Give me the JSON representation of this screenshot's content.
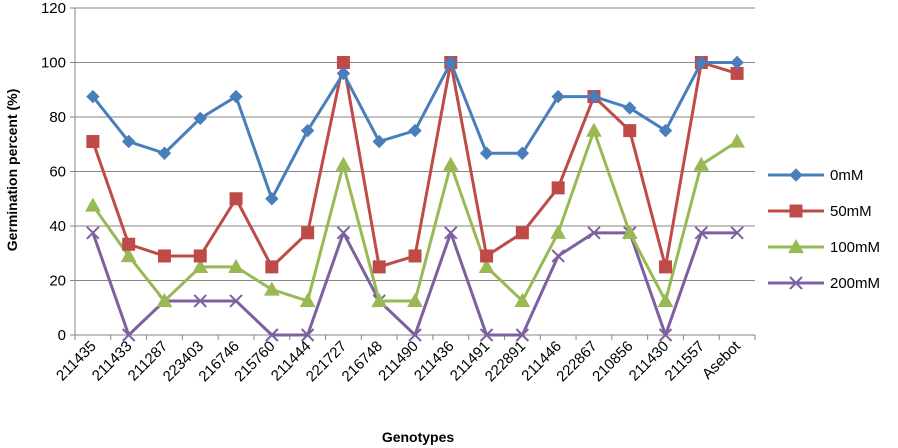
{
  "chart_data": {
    "type": "line",
    "title": "",
    "xlabel": "Genotypes",
    "ylabel": "Germination percent (%)",
    "ylim": [
      0,
      120
    ],
    "yticks": [
      0,
      20,
      40,
      60,
      80,
      100,
      120
    ],
    "grid": "horizontal",
    "legend_position": "right",
    "categories": [
      "211435",
      "211433",
      "211287",
      "223403",
      "216746",
      "215760",
      "211444",
      "221727",
      "216748",
      "211490",
      "211436",
      "211491",
      "222891",
      "211446",
      "222867",
      "210856",
      "211430",
      "211557",
      "Asebot"
    ],
    "series": [
      {
        "name": "0mM",
        "color": "#4a7ebb",
        "marker": "diamond",
        "values": [
          87.5,
          71,
          66.7,
          79.5,
          87.5,
          50,
          75,
          96,
          71,
          75,
          100,
          66.7,
          66.7,
          87.5,
          87.5,
          83.3,
          75,
          100,
          100
        ]
      },
      {
        "name": "50mM",
        "color": "#be4b48",
        "marker": "square",
        "values": [
          71,
          33.3,
          29,
          29,
          50,
          25,
          37.5,
          100,
          25,
          29,
          100,
          29,
          37.5,
          54,
          87.5,
          75,
          25,
          100,
          96
        ]
      },
      {
        "name": "100mM",
        "color": "#98b954",
        "marker": "triangle",
        "values": [
          47.5,
          29,
          12.5,
          25,
          25,
          16.7,
          12.5,
          62.5,
          12.5,
          12.5,
          62.5,
          25,
          12.5,
          37.5,
          75,
          37.5,
          12.5,
          62.5,
          71
        ]
      },
      {
        "name": "200mM",
        "color": "#7d60a0",
        "marker": "x",
        "values": [
          37.5,
          0,
          12.5,
          12.5,
          12.5,
          0,
          0,
          37.5,
          12.5,
          0,
          37.5,
          0,
          0,
          29,
          37.5,
          37.5,
          0,
          37.5,
          37.5
        ]
      }
    ]
  }
}
